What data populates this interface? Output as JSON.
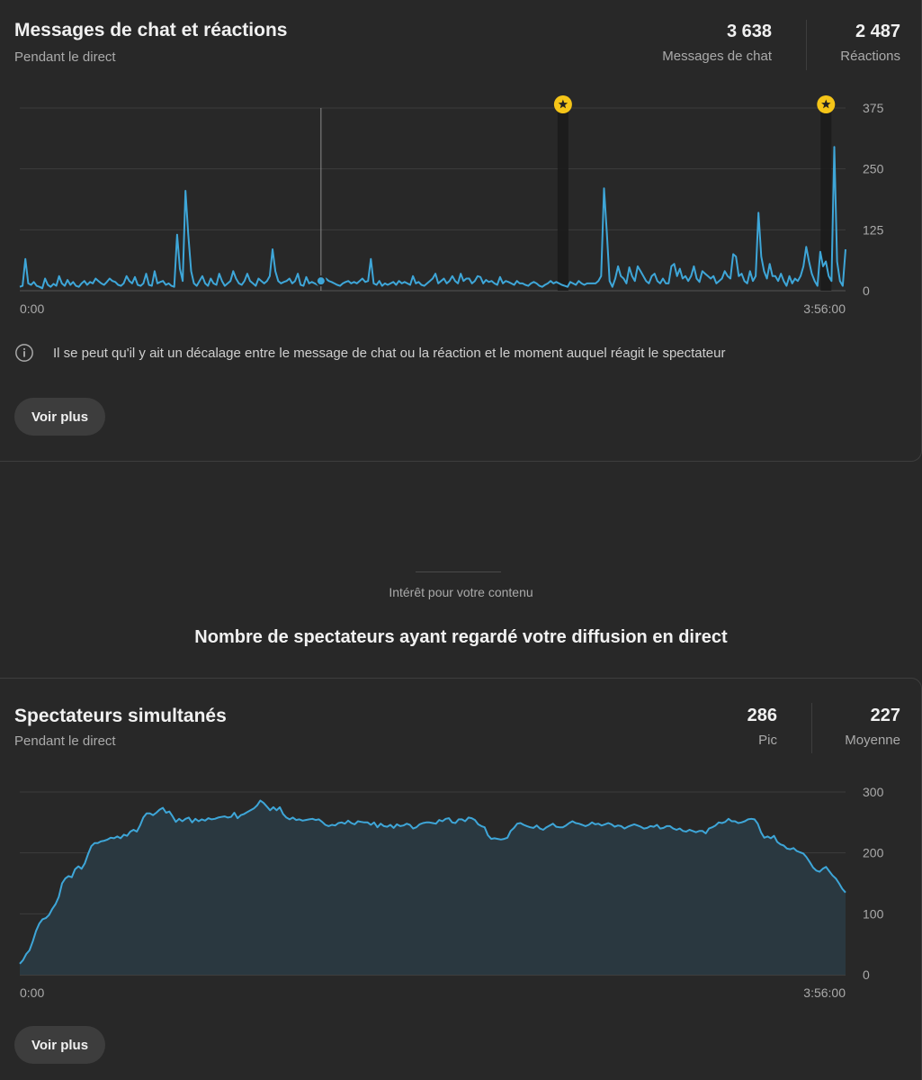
{
  "chat_card": {
    "title": "Messages de chat et réactions",
    "subtitle": "Pendant le direct",
    "metrics": [
      {
        "value": "3 638",
        "label": "Messages de chat"
      },
      {
        "value": "2 487",
        "label": "Réactions"
      }
    ],
    "note": "Il se peut qu'il y ait un décalage entre le message de chat ou la réaction et le moment auquel réagit le spectateur",
    "button": "Voir plus",
    "highlight_icon": "star-badge-icon",
    "info_icon": "info-icon"
  },
  "section": {
    "label": "Intérêt pour votre contenu",
    "heading": "Nombre de spectateurs ayant regardé votre diffusion en direct"
  },
  "viewers_card": {
    "title": "Spectateurs simultanés",
    "subtitle": "Pendant le direct",
    "metrics": [
      {
        "value": "286",
        "label": "Pic"
      },
      {
        "value": "227",
        "label": "Moyenne"
      }
    ],
    "button": "Voir plus"
  },
  "colors": {
    "line": "#3ea6d8",
    "star": "#f5c518",
    "viewer_fill": "#2a3840"
  },
  "chart_data": [
    {
      "type": "line",
      "x_start_label": "0:00",
      "x_end_label": "3:56:00",
      "duration_seconds": 14160,
      "y_ticks": [
        "375",
        "250",
        "125",
        "0"
      ],
      "ylim": [
        0,
        375
      ],
      "grid": true,
      "cursor_at_seconds": 5165,
      "cursor_value": 20,
      "highlights_at_seconds": [
        9315,
        13825
      ],
      "series": [
        {
          "values": [
            8,
            10,
            65,
            15,
            12,
            18,
            10,
            8,
            5,
            25,
            12,
            8,
            14,
            10,
            30,
            15,
            10,
            22,
            12,
            18,
            10,
            8,
            15,
            20,
            12,
            18,
            15,
            25,
            20,
            15,
            12,
            18,
            25,
            20,
            18,
            12,
            10,
            15,
            30,
            20,
            15,
            28,
            12,
            10,
            15,
            35,
            12,
            10,
            40,
            15,
            18,
            20,
            12,
            15,
            10,
            8,
            115,
            45,
            20,
            205,
            115,
            40,
            15,
            10,
            20,
            30,
            15,
            10,
            25,
            15,
            12,
            35,
            20,
            10,
            15,
            20,
            40,
            25,
            15,
            12,
            20,
            35,
            20,
            15,
            10,
            25,
            20,
            15,
            20,
            30,
            85,
            40,
            20,
            15,
            18,
            20,
            25,
            15,
            20,
            35,
            12,
            10,
            28,
            15,
            18,
            15,
            12,
            20,
            15,
            25,
            20,
            18,
            15,
            12,
            10,
            15,
            18,
            20,
            15,
            18,
            15,
            20,
            25,
            18,
            20,
            65,
            15,
            12,
            20,
            10,
            15,
            12,
            15,
            18,
            12,
            20,
            15,
            18,
            15,
            12,
            30,
            15,
            18,
            12,
            10,
            15,
            20,
            25,
            35,
            15,
            20,
            25,
            15,
            20,
            30,
            20,
            15,
            35,
            20,
            25,
            25,
            15,
            20,
            30,
            28,
            15,
            22,
            18,
            20,
            15,
            12,
            28,
            15,
            20,
            18,
            15,
            12,
            20,
            15,
            15,
            12,
            10,
            15,
            18,
            15,
            10,
            8,
            12,
            15,
            20,
            15,
            18,
            15,
            12,
            10,
            8,
            18,
            15,
            12,
            20,
            15,
            12,
            15,
            15,
            15,
            15,
            20,
            30,
            210,
            120,
            20,
            8,
            25,
            50,
            30,
            25,
            15,
            48,
            30,
            20,
            50,
            40,
            30,
            20,
            15,
            30,
            35,
            20,
            15,
            25,
            15,
            15,
            50,
            55,
            30,
            45,
            25,
            30,
            20,
            30,
            50,
            25,
            18,
            40,
            35,
            30,
            25,
            30,
            15,
            20,
            25,
            40,
            30,
            25,
            75,
            70,
            30,
            35,
            20,
            15,
            40,
            20,
            30,
            160,
            70,
            40,
            25,
            55,
            30,
            30,
            20,
            35,
            20,
            10,
            30,
            15,
            25,
            20,
            30,
            50,
            90,
            60,
            35,
            20,
            10,
            80,
            50,
            60,
            30,
            20,
            295,
            60,
            20,
            10,
            85
          ]
        }
      ]
    },
    {
      "type": "area",
      "x_start_label": "0:00",
      "x_end_label": "3:56:00",
      "y_ticks": [
        "300",
        "200",
        "100",
        "0"
      ],
      "ylim": [
        0,
        300
      ],
      "grid": true,
      "series": [
        {
          "values": [
            18,
            24,
            34,
            40,
            55,
            72,
            84,
            91,
            93,
            98,
            108,
            116,
            128,
            150,
            158,
            162,
            160,
            173,
            178,
            174,
            183,
            198,
            211,
            216,
            216,
            219,
            220,
            222,
            225,
            224,
            227,
            224,
            230,
            228,
            235,
            238,
            235,
            245,
            258,
            265,
            265,
            262,
            266,
            271,
            274,
            266,
            268,
            260,
            251,
            256,
            252,
            256,
            258,
            250,
            256,
            252,
            255,
            253,
            257,
            255,
            256,
            258,
            259,
            260,
            258,
            259,
            266,
            257,
            262,
            264,
            267,
            270,
            273,
            278,
            286,
            282,
            276,
            270,
            275,
            270,
            275,
            264,
            258,
            255,
            258,
            254,
            255,
            253,
            254,
            255,
            256,
            254,
            255,
            251,
            246,
            244,
            246,
            245,
            249,
            250,
            248,
            253,
            249,
            247,
            252,
            251,
            250,
            250,
            246,
            250,
            242,
            248,
            244,
            243,
            246,
            241,
            247,
            244,
            245,
            248,
            246,
            240,
            242,
            247,
            249,
            250,
            250,
            249,
            248,
            254,
            252,
            256,
            257,
            250,
            249,
            255,
            255,
            252,
            258,
            257,
            254,
            247,
            244,
            242,
            229,
            223,
            224,
            223,
            222,
            223,
            225,
            236,
            241,
            248,
            249,
            246,
            244,
            242,
            241,
            245,
            240,
            238,
            242,
            245,
            248,
            243,
            242,
            242,
            245,
            249,
            252,
            249,
            248,
            246,
            244,
            246,
            250,
            247,
            248,
            245,
            247,
            249,
            247,
            243,
            245,
            244,
            240,
            243,
            245,
            247,
            245,
            243,
            240,
            241,
            244,
            243,
            246,
            240,
            241,
            244,
            244,
            240,
            238,
            240,
            236,
            235,
            238,
            236,
            234,
            236,
            236,
            232,
            240,
            242,
            245,
            250,
            249,
            251,
            256,
            252,
            252,
            249,
            250,
            252,
            255,
            256,
            255,
            248,
            234,
            225,
            227,
            224,
            228,
            218,
            214,
            212,
            207,
            206,
            208,
            203,
            201,
            199,
            193,
            185,
            176,
            171,
            169,
            174,
            177,
            170,
            163,
            158,
            150,
            141,
            135
          ]
        }
      ]
    }
  ]
}
